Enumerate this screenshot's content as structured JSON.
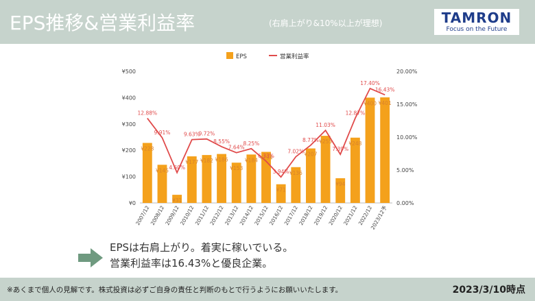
{
  "header": {
    "title": "EPS推移&営業利益率",
    "subtitle": "(右肩上がり&10%以上が理想)",
    "logo_main": "TAMRON",
    "logo_sub": "Focus on the Future"
  },
  "summary": {
    "line1": "EPSは右肩上がり。着実に稼いでいる。",
    "line2": "営業利益率は16.43%と優良企業。"
  },
  "footer": {
    "disclaimer": "※あくまで個人の見解です。株式投資は必ずご自身の責任と判断のもとで行うようにお願いいたします。",
    "as_of": "2023/3/10時点"
  },
  "colors": {
    "bar": "#f4a11c",
    "line": "#e04a4a",
    "header_bg": "#c6d3cc",
    "logo_text": "#1f3d8a"
  },
  "chart_data": {
    "type": "bar",
    "categories": [
      "2007/12",
      "2008/12",
      "2009/12",
      "2010/12",
      "2011/12",
      "2012/12",
      "2013/12",
      "2014/12",
      "2015/12",
      "2016/12",
      "2017/12",
      "2018/12",
      "2019/12",
      "2020/12",
      "2021/12",
      "2022/12",
      "2023/12予"
    ],
    "series": [
      {
        "name": "EPS",
        "type": "bar",
        "axis": "left",
        "values": [
          228,
          145,
          31,
          177,
          182,
          186,
          153,
          184,
          194,
          71,
          136,
          207,
          255,
          94,
          248,
          400,
          401
        ],
        "labels": [
          "¥228",
          "¥145",
          "¥31",
          "¥177",
          "¥182",
          "¥186",
          "¥153",
          "¥184",
          "¥194",
          "¥71",
          "¥136",
          "¥207",
          "¥255",
          "¥94",
          "¥248",
          "¥400",
          "¥401"
        ]
      },
      {
        "name": "営業利益率",
        "type": "line",
        "axis": "right",
        "values": [
          12.88,
          9.91,
          4.6,
          9.63,
          9.72,
          8.55,
          7.64,
          8.25,
          6.33,
          3.94,
          7.02,
          8.77,
          11.03,
          7.39,
          12.87,
          17.4,
          16.43
        ],
        "labels": [
          "12.88%",
          "9.91%",
          "4.60%",
          "9.63%",
          "9.72%",
          "8.55%",
          "7.64%",
          "8.25%",
          "6.33%",
          "3.94%",
          "7.02%",
          "8.77%",
          "11.03%",
          "7.39%",
          "12.87%",
          "17.40%",
          "16.43%"
        ]
      }
    ],
    "y_left": {
      "ticks": [
        "¥0",
        "¥100",
        "¥200",
        "¥300",
        "¥400",
        "¥500"
      ],
      "ylim": [
        0,
        500
      ]
    },
    "y_right": {
      "ticks": [
        "0.00%",
        "5.00%",
        "10.00%",
        "15.00%",
        "20.00%"
      ],
      "ylim": [
        0,
        20
      ]
    },
    "legend_position": "top-center",
    "grid": false
  }
}
